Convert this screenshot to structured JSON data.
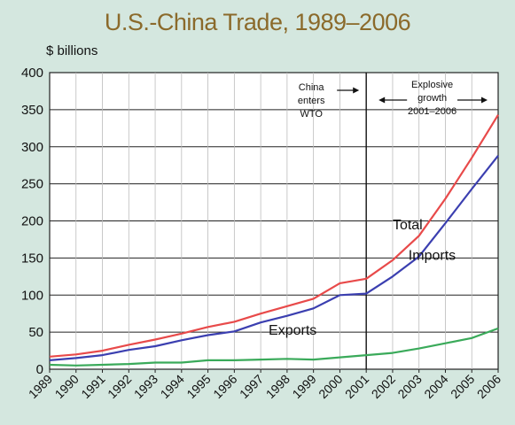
{
  "chart_data": {
    "type": "line",
    "title": "U.S.-China Trade, 1989–2006",
    "ylabel": "$ billions",
    "ylim": [
      0,
      400
    ],
    "yticks": [
      0,
      50,
      100,
      150,
      200,
      250,
      300,
      350,
      400
    ],
    "grid": true,
    "categories": [
      "1989",
      "1990",
      "1991",
      "1992",
      "1993",
      "1994",
      "1995",
      "1996",
      "1997",
      "1998",
      "1999",
      "2000",
      "2001",
      "2002",
      "2003",
      "2004",
      "2005",
      "2006"
    ],
    "series": [
      {
        "name": "Total",
        "color": "#e84a4a",
        "values": [
          17,
          20,
          25,
          33,
          40,
          48,
          57,
          64,
          75,
          85,
          95,
          116,
          122,
          147,
          180,
          230,
          285,
          343
        ]
      },
      {
        "name": "Imports",
        "color": "#3b3fb0",
        "values": [
          12,
          15,
          19,
          26,
          31,
          39,
          46,
          51,
          63,
          72,
          82,
          100,
          102,
          125,
          152,
          197,
          243,
          288
        ]
      },
      {
        "name": "Exports",
        "color": "#3aaa5a",
        "values": [
          6,
          5,
          6,
          7,
          9,
          9,
          12,
          12,
          13,
          14,
          13,
          16,
          19,
          22,
          28,
          35,
          42,
          55
        ]
      }
    ],
    "annotations": {
      "wto": [
        "China",
        "enters",
        "WTO"
      ],
      "growth": [
        "Explosive",
        "growth",
        "2001–2006"
      ],
      "marker_year": "2001"
    }
  }
}
